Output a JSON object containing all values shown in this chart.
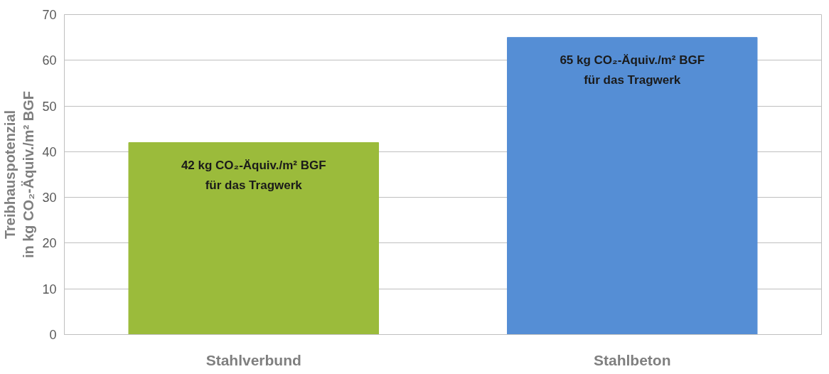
{
  "chart_data": {
    "type": "bar",
    "ylabel": "Treibhauspotenzial\nin kg CO₂-Äquiv./m² BGF",
    "categories": [
      "Stahlverbund",
      "Stahlbeton"
    ],
    "values": [
      42,
      65
    ],
    "colors": [
      "#9bbb3b",
      "#558ed5"
    ],
    "value_labels": [
      "42 kg CO₂-Äquiv./m² BGF\nfür das Tragwerk",
      "65 kg CO₂-Äquiv./m² BGF\nfür das Tragwerk"
    ],
    "ylim": [
      0,
      70
    ],
    "yticks": [
      0,
      10,
      20,
      30,
      40,
      50,
      60,
      70
    ],
    "grid": "y"
  }
}
